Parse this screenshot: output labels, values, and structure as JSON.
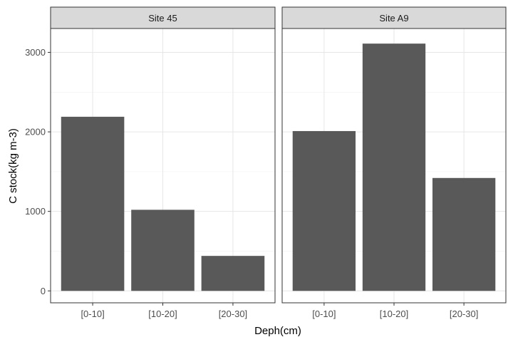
{
  "chart_data": {
    "type": "bar",
    "xlabel": "Deph(cm)",
    "ylabel": "C stock(kg m-3)",
    "categories": [
      "[0-10]",
      "[10-20]",
      "[20-30]"
    ],
    "ylim": [
      -150,
      3300
    ],
    "y_ticks": [
      0,
      1000,
      2000,
      3000
    ],
    "grid": true,
    "bar_color": "#595959",
    "panels": [
      {
        "name": "Site 45",
        "values": [
          2190,
          1020,
          440
        ]
      },
      {
        "name": "Site A9",
        "values": [
          2010,
          3110,
          1420
        ]
      }
    ]
  }
}
